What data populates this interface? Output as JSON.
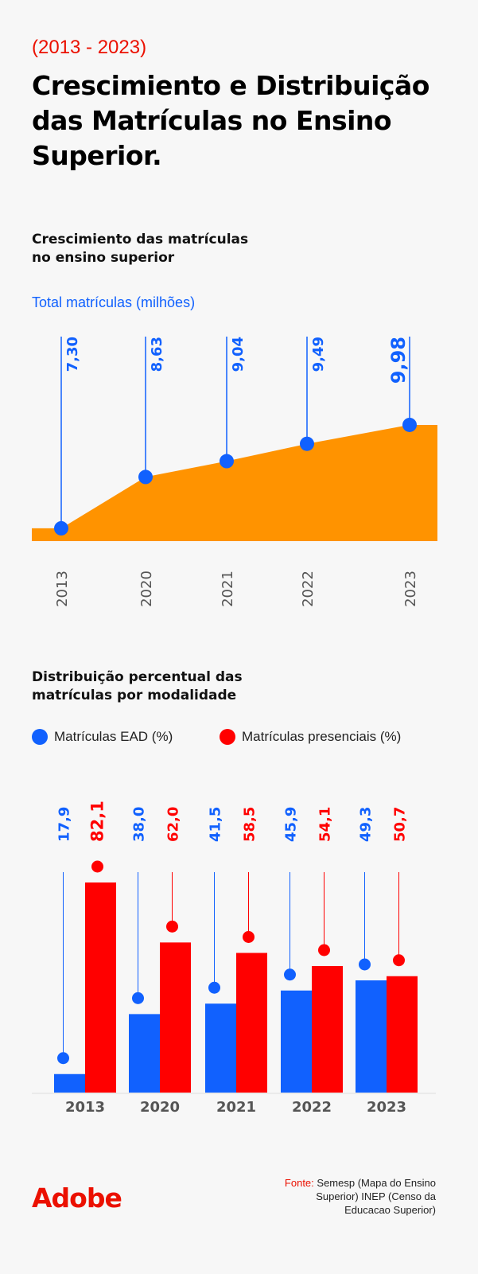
{
  "header": {
    "range": "(2013 - 2023)",
    "title": "Crescimiento e Distribuição das Matrículas no Ensino Superior."
  },
  "colors": {
    "blue": "#1161fe",
    "red": "#ff0000",
    "orange": "#ff9300",
    "title_red": "#eb1000",
    "background": "#f7f7f7"
  },
  "chart_data": [
    {
      "type": "area",
      "title": "Crescimiento das matrículas no ensino superior",
      "ylabel": "Total matrículas (milhões)",
      "categories": [
        "2013",
        "2020",
        "2021",
        "2022",
        "2023"
      ],
      "values": [
        7.3,
        8.63,
        9.04,
        9.49,
        9.98
      ],
      "value_labels": [
        "7,30",
        "8,63",
        "9,04",
        "9,49",
        "9,98"
      ],
      "grid": false
    },
    {
      "type": "bar",
      "title": "Distribuição percentual das matrículas por modalidade",
      "categories": [
        "2013",
        "2020",
        "2021",
        "2022",
        "2023"
      ],
      "legend_position": "top-left",
      "series": [
        {
          "name": "Matrículas EAD (%)",
          "color": "#1161fe",
          "values": [
            17.9,
            38.0,
            41.5,
            45.9,
            49.3
          ],
          "labels": [
            "17,9",
            "38,0",
            "41,5",
            "45,9",
            "49,3"
          ]
        },
        {
          "name": "Matrículas presenciais (%)",
          "color": "#ff0000",
          "values": [
            82.1,
            62.0,
            58.5,
            54.1,
            50.7
          ],
          "labels": [
            "82,1",
            "62,0",
            "58,5",
            "54,1",
            "50,7"
          ]
        }
      ],
      "grid": false
    }
  ],
  "footer": {
    "logo": "Adobe",
    "source_label": "Fonte:",
    "source_text": "Semesp (Mapa do Ensino Superior) INEP (Censo da Educacao Superior)"
  }
}
